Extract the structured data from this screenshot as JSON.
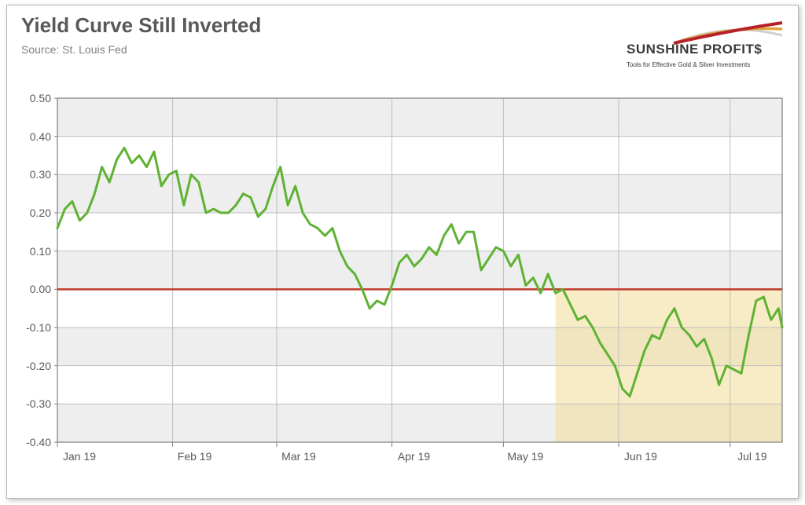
{
  "title": "Yield Curve Still Inverted",
  "source": "Source: St. Louis Fed",
  "logo": {
    "primary": "SUNSHINE PROFIT$",
    "tagline": "Tools for Effective Gold & Silver Investments",
    "swoosh_colors": [
      "#b7222a",
      "#e2a33a",
      "#d0d0d0"
    ]
  },
  "chart": {
    "type": "line",
    "background_color": "#eeeeee",
    "panel_color": "#ffffff",
    "grid_color": "#bfbfbf",
    "border_color": "#808080",
    "line_color": "#5fb233",
    "line_width": 3,
    "zero_line_color": "#c0392b",
    "zero_line_width": 2.5,
    "highlight_fill": "#f2e0a0",
    "highlight_opacity": 0.6,
    "highlight_range_x": [
      134,
      195
    ],
    "ylim": [
      -0.4,
      0.5
    ],
    "ytick_step": 0.1,
    "yticks": [
      "-0.40",
      "-0.30",
      "-0.20",
      "-0.10",
      "0.00",
      "0.10",
      "0.20",
      "0.30",
      "0.40",
      "0.50"
    ],
    "xlim": [
      0,
      195
    ],
    "xticks": [
      {
        "x": 0,
        "label": "Jan 19"
      },
      {
        "x": 31,
        "label": "Feb 19"
      },
      {
        "x": 59,
        "label": "Mar 19"
      },
      {
        "x": 90,
        "label": "Apr 19"
      },
      {
        "x": 120,
        "label": "May 19"
      },
      {
        "x": 151,
        "label": "Jun 19"
      },
      {
        "x": 181,
        "label": "Jul 19"
      }
    ],
    "series": [
      {
        "x": 0,
        "y": 0.16
      },
      {
        "x": 2,
        "y": 0.21
      },
      {
        "x": 4,
        "y": 0.23
      },
      {
        "x": 6,
        "y": 0.18
      },
      {
        "x": 8,
        "y": 0.2
      },
      {
        "x": 10,
        "y": 0.25
      },
      {
        "x": 12,
        "y": 0.32
      },
      {
        "x": 14,
        "y": 0.28
      },
      {
        "x": 16,
        "y": 0.34
      },
      {
        "x": 18,
        "y": 0.37
      },
      {
        "x": 20,
        "y": 0.33
      },
      {
        "x": 22,
        "y": 0.35
      },
      {
        "x": 24,
        "y": 0.32
      },
      {
        "x": 26,
        "y": 0.36
      },
      {
        "x": 28,
        "y": 0.27
      },
      {
        "x": 30,
        "y": 0.3
      },
      {
        "x": 32,
        "y": 0.31
      },
      {
        "x": 34,
        "y": 0.22
      },
      {
        "x": 36,
        "y": 0.3
      },
      {
        "x": 38,
        "y": 0.28
      },
      {
        "x": 40,
        "y": 0.2
      },
      {
        "x": 42,
        "y": 0.21
      },
      {
        "x": 44,
        "y": 0.2
      },
      {
        "x": 46,
        "y": 0.2
      },
      {
        "x": 48,
        "y": 0.22
      },
      {
        "x": 50,
        "y": 0.25
      },
      {
        "x": 52,
        "y": 0.24
      },
      {
        "x": 54,
        "y": 0.19
      },
      {
        "x": 56,
        "y": 0.21
      },
      {
        "x": 58,
        "y": 0.27
      },
      {
        "x": 60,
        "y": 0.32
      },
      {
        "x": 62,
        "y": 0.22
      },
      {
        "x": 64,
        "y": 0.27
      },
      {
        "x": 66,
        "y": 0.2
      },
      {
        "x": 68,
        "y": 0.17
      },
      {
        "x": 70,
        "y": 0.16
      },
      {
        "x": 72,
        "y": 0.14
      },
      {
        "x": 74,
        "y": 0.16
      },
      {
        "x": 76,
        "y": 0.1
      },
      {
        "x": 78,
        "y": 0.06
      },
      {
        "x": 80,
        "y": 0.04
      },
      {
        "x": 82,
        "y": 0.0
      },
      {
        "x": 84,
        "y": -0.05
      },
      {
        "x": 86,
        "y": -0.03
      },
      {
        "x": 88,
        "y": -0.04
      },
      {
        "x": 90,
        "y": 0.01
      },
      {
        "x": 92,
        "y": 0.07
      },
      {
        "x": 94,
        "y": 0.09
      },
      {
        "x": 96,
        "y": 0.06
      },
      {
        "x": 98,
        "y": 0.08
      },
      {
        "x": 100,
        "y": 0.11
      },
      {
        "x": 102,
        "y": 0.09
      },
      {
        "x": 104,
        "y": 0.14
      },
      {
        "x": 106,
        "y": 0.17
      },
      {
        "x": 108,
        "y": 0.12
      },
      {
        "x": 110,
        "y": 0.15
      },
      {
        "x": 112,
        "y": 0.15
      },
      {
        "x": 114,
        "y": 0.05
      },
      {
        "x": 116,
        "y": 0.08
      },
      {
        "x": 118,
        "y": 0.11
      },
      {
        "x": 120,
        "y": 0.1
      },
      {
        "x": 122,
        "y": 0.06
      },
      {
        "x": 124,
        "y": 0.09
      },
      {
        "x": 126,
        "y": 0.01
      },
      {
        "x": 128,
        "y": 0.03
      },
      {
        "x": 130,
        "y": -0.01
      },
      {
        "x": 132,
        "y": 0.04
      },
      {
        "x": 134,
        "y": -0.01
      },
      {
        "x": 136,
        "y": 0.0
      },
      {
        "x": 138,
        "y": -0.04
      },
      {
        "x": 140,
        "y": -0.08
      },
      {
        "x": 142,
        "y": -0.07
      },
      {
        "x": 144,
        "y": -0.1
      },
      {
        "x": 146,
        "y": -0.14
      },
      {
        "x": 148,
        "y": -0.17
      },
      {
        "x": 150,
        "y": -0.2
      },
      {
        "x": 152,
        "y": -0.26
      },
      {
        "x": 154,
        "y": -0.28
      },
      {
        "x": 156,
        "y": -0.22
      },
      {
        "x": 158,
        "y": -0.16
      },
      {
        "x": 160,
        "y": -0.12
      },
      {
        "x": 162,
        "y": -0.13
      },
      {
        "x": 164,
        "y": -0.08
      },
      {
        "x": 166,
        "y": -0.05
      },
      {
        "x": 168,
        "y": -0.1
      },
      {
        "x": 170,
        "y": -0.12
      },
      {
        "x": 172,
        "y": -0.15
      },
      {
        "x": 174,
        "y": -0.13
      },
      {
        "x": 176,
        "y": -0.18
      },
      {
        "x": 178,
        "y": -0.25
      },
      {
        "x": 180,
        "y": -0.2
      },
      {
        "x": 182,
        "y": -0.21
      },
      {
        "x": 184,
        "y": -0.22
      },
      {
        "x": 186,
        "y": -0.12
      },
      {
        "x": 188,
        "y": -0.03
      },
      {
        "x": 190,
        "y": -0.02
      },
      {
        "x": 192,
        "y": -0.08
      },
      {
        "x": 194,
        "y": -0.05
      },
      {
        "x": 195,
        "y": -0.1
      }
    ]
  },
  "title_fontsize": 26,
  "source_fontsize": 14,
  "tick_fontsize": 14
}
